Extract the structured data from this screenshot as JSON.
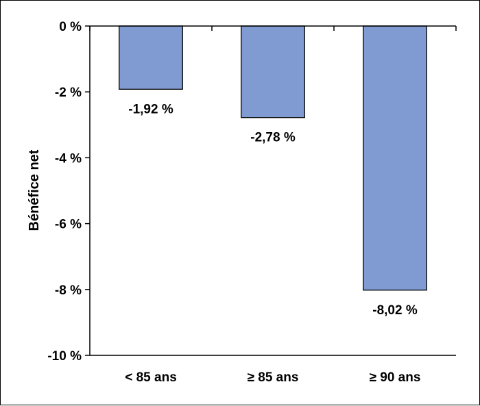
{
  "chart_data": {
    "type": "bar",
    "title": "",
    "xlabel": "",
    "ylabel": "Bénéfice net",
    "categories": [
      "< 85 ans",
      "≥ 85 ans",
      "≥ 90 ans"
    ],
    "values": [
      -1.92,
      -2.78,
      -8.02
    ],
    "data_labels": [
      "-1,92 %",
      "-2,78 %",
      "-8,02 %"
    ],
    "ylim": [
      -10,
      0
    ],
    "yticks": [
      0,
      -2,
      -4,
      -6,
      -8,
      -10
    ],
    "ytick_labels": [
      "0 %",
      "-2 %",
      "-4 %",
      "-6 %",
      "-8 %",
      "-10 %"
    ],
    "grid": false,
    "legend": "none",
    "colors": {
      "bar_fill": "#7f9bd2",
      "bar_stroke": "#000000",
      "axis": "#000000"
    }
  }
}
